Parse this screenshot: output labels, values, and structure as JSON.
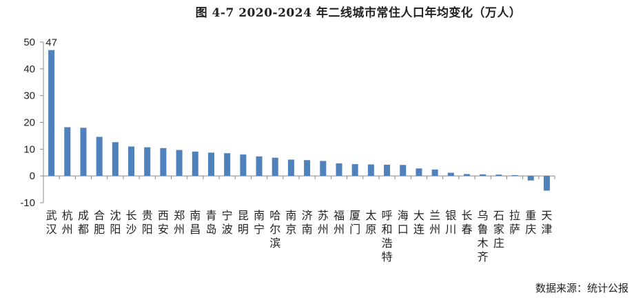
{
  "title": "图 4-7 2020-2024 年二线城市常住人口年均变化（万人）",
  "source": "数据来源：统计公报",
  "colors": {
    "bar": "#4f81bd",
    "axis": "#888888"
  },
  "chart_data": {
    "type": "bar",
    "title": "图 4-7 2020-2024 年二线城市常住人口年均变化（万人）",
    "xlabel": "",
    "ylabel": "",
    "ylim": [
      -10,
      50
    ],
    "yticks": [
      -10,
      0,
      10,
      20,
      30,
      40,
      50
    ],
    "grid": false,
    "categories": [
      "武汉",
      "杭州",
      "成都",
      "合肥",
      "沈阳",
      "长沙",
      "贵阳",
      "西安",
      "郑州",
      "南昌",
      "青岛",
      "宁波",
      "昆明",
      "南宁",
      "哈尔滨",
      "南京",
      "济南",
      "苏州",
      "福州",
      "厦门",
      "太原",
      "呼和浩特",
      "海口",
      "大连",
      "兰州",
      "银川",
      "长春",
      "乌鲁木齐",
      "石家庄",
      "拉萨",
      "重庆",
      "天津"
    ],
    "values": [
      47,
      18.2,
      18,
      14.6,
      12.6,
      11,
      10.7,
      10.4,
      9.7,
      9.1,
      8.7,
      8.5,
      8,
      7.3,
      6.8,
      6.1,
      5.9,
      5.6,
      4.7,
      4.4,
      4.3,
      4.2,
      4.1,
      2.8,
      2.4,
      1.2,
      0.7,
      0.6,
      0.5,
      0.3,
      -1.7,
      -5.5
    ],
    "data_labels": [
      {
        "category": "武汉",
        "text": "47"
      }
    ]
  }
}
